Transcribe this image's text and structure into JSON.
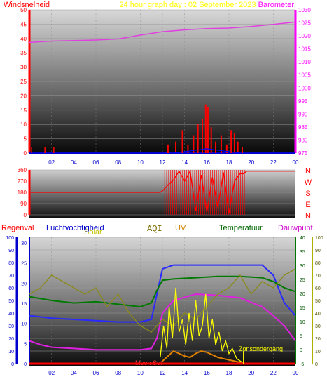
{
  "chart_data": [
    {
      "type": "line",
      "id": "top",
      "title": "24 hour graph day : 02 September 2023",
      "left_axis_label": "Windsnelheid",
      "right_axis_label": "Barometer",
      "x_ticks": [
        "02",
        "04",
        "06",
        "08",
        "10",
        "12",
        "14",
        "16",
        "18",
        "20",
        "22",
        "00"
      ],
      "left_ticks": [
        "0",
        "5",
        "10",
        "15",
        "20",
        "25",
        "30",
        "35",
        "40",
        "45",
        "50"
      ],
      "right_ticks": [
        "975",
        "980",
        "985",
        "990",
        "995",
        "1000",
        "1005",
        "1010",
        "1015",
        "1020",
        "1025",
        "1030"
      ],
      "ylim_left": [
        0,
        50
      ],
      "ylim_right": [
        975,
        1030
      ],
      "series": [
        {
          "role": "barometer",
          "color": "#e040e0",
          "x": [
            0,
            2,
            4,
            6,
            8,
            10,
            12,
            14,
            16,
            18,
            20,
            22,
            24
          ],
          "y": [
            1017.5,
            1018,
            1018.2,
            1018.4,
            1018.8,
            1020.3,
            1021.6,
            1022.3,
            1022.8,
            1023,
            1023.6,
            1024.4,
            1025.3
          ]
        },
        {
          "role": "wind",
          "color": "#ff0000",
          "x": [
            12.5,
            13.2,
            13.8,
            14.3,
            14.8,
            15.2,
            15.6,
            15.9,
            16.1,
            16.4,
            16.8,
            17.3,
            17.8,
            18.2,
            18.5,
            18.8,
            19.2
          ],
          "y": [
            3,
            4,
            8,
            3,
            6,
            10,
            12,
            17,
            16,
            9,
            4,
            6,
            3,
            8,
            7,
            4,
            2
          ]
        },
        {
          "role": "wind-gust",
          "color": "#0000ff",
          "x": [
            13,
            14,
            15,
            16,
            17,
            18,
            19
          ],
          "y": [
            0,
            0.5,
            1,
            1.5,
            1,
            0.5,
            0
          ]
        }
      ]
    },
    {
      "type": "line",
      "id": "direction",
      "right_axis_labels": [
        "N",
        "W",
        "S",
        "E",
        "N"
      ],
      "left_ticks": [
        "0",
        "90",
        "180",
        "270",
        "360"
      ],
      "ylim": [
        0,
        360
      ],
      "series": [
        {
          "role": "wind-direction",
          "color": "#ff0000",
          "x": [
            0,
            11.8,
            12.1,
            12.5,
            13,
            13.5,
            14,
            14.5,
            15,
            15.5,
            16,
            16.5,
            17,
            17.5,
            18,
            18.5,
            19,
            19.3,
            19.6,
            24
          ],
          "y": [
            180,
            180,
            200,
            240,
            280,
            350,
            270,
            350,
            30,
            320,
            20,
            300,
            60,
            340,
            10,
            270,
            330,
            330,
            350,
            350
          ]
        }
      ]
    },
    {
      "type": "line",
      "id": "bottom",
      "labels": [
        "Regenval",
        "Luchtvochtigheid",
        "Solar",
        "AQI",
        "UV",
        "Temperatuur",
        "Dauwpunt"
      ],
      "label_colors": [
        "#ff0000",
        "#0000cc",
        "#b0b000",
        "#7a6a00",
        "#d08000",
        "#006600",
        "#cc00cc"
      ],
      "left_ticks": [
        "0",
        "10",
        "20",
        "30",
        "40",
        "50",
        "60",
        "70",
        "80",
        "90",
        "100"
      ],
      "inner_ticks": [
        "0",
        "5",
        "10",
        "15",
        "20",
        "25",
        "30"
      ],
      "right_inner_ticks": [
        "-5",
        "0",
        "5",
        "10",
        "15",
        "20",
        "25",
        "30",
        "35",
        "40"
      ],
      "right_outer_ticks": [
        "0",
        "10",
        "20",
        "30",
        "40",
        "50",
        "60",
        "70",
        "80",
        "90",
        "100"
      ],
      "annotations": [
        "Zonsondergang",
        "Moon Set"
      ],
      "series": [
        {
          "role": "humidity",
          "color": "#2a2aff",
          "x": [
            0,
            2,
            4,
            6,
            8,
            10,
            11,
            11.5,
            12,
            13,
            15,
            17,
            19,
            21,
            22,
            23,
            24
          ],
          "y": [
            38,
            36,
            35,
            34,
            33,
            33,
            35,
            55,
            75,
            78,
            78,
            78,
            78,
            78,
            70,
            48,
            38
          ]
        },
        {
          "role": "temperature",
          "color": "#007a00",
          "x": [
            0,
            2,
            4,
            6,
            8,
            10,
            11,
            11.5,
            12,
            13,
            15,
            17,
            19,
            21,
            22,
            23,
            24
          ],
          "y": [
            53,
            50,
            48,
            49,
            47,
            45,
            48,
            58,
            66,
            67,
            68,
            69,
            69,
            68,
            65,
            60,
            57
          ]
        },
        {
          "role": "dewpoint",
          "color": "#e020e0",
          "x": [
            0,
            1,
            2,
            4,
            6,
            8,
            10,
            11,
            11.5,
            12,
            13,
            15,
            17,
            19,
            21,
            22,
            23,
            24
          ],
          "y": [
            18,
            15,
            13,
            12,
            11,
            11,
            11,
            12,
            20,
            40,
            50,
            55,
            54,
            52,
            45,
            38,
            30,
            18
          ]
        },
        {
          "role": "aqi",
          "color": "#8a8a1a",
          "x": [
            0,
            1,
            2,
            3,
            4,
            5,
            6,
            7,
            8,
            9,
            10,
            11,
            12,
            13,
            14,
            15,
            16,
            17,
            18,
            19,
            20,
            21,
            22,
            23,
            24
          ],
          "y": [
            55,
            60,
            70,
            65,
            60,
            55,
            60,
            45,
            55,
            40,
            30,
            25,
            35,
            30,
            40,
            35,
            45,
            55,
            60,
            70,
            55,
            65,
            60,
            70,
            75
          ]
        },
        {
          "role": "solar",
          "color": "#ffff00",
          "x": [
            11.8,
            12.1,
            12.4,
            12.6,
            12.9,
            13.2,
            13.5,
            13.8,
            14.1,
            14.4,
            14.7,
            15,
            15.3,
            15.6,
            15.9,
            16.2,
            16.5,
            16.8,
            17.1,
            17.4,
            17.7,
            18,
            18.3,
            18.7,
            19.2
          ],
          "y": [
            5,
            30,
            12,
            45,
            20,
            60,
            25,
            35,
            15,
            40,
            18,
            50,
            22,
            30,
            55,
            20,
            35,
            15,
            25,
            10,
            18,
            8,
            12,
            4,
            1
          ]
        },
        {
          "role": "uv",
          "color": "#e08000",
          "x": [
            12,
            12.5,
            13,
            13.5,
            14,
            14.5,
            15,
            15.5,
            16,
            16.5,
            17,
            17.5,
            18,
            18.5,
            19,
            19.5
          ],
          "y": [
            2,
            6,
            10,
            8,
            6,
            5,
            8,
            10,
            9,
            7,
            5,
            4,
            3,
            2,
            1,
            0
          ]
        },
        {
          "role": "rain",
          "color": "#ff0000",
          "x": [
            0,
            24
          ],
          "y": [
            0,
            0
          ]
        }
      ]
    }
  ]
}
